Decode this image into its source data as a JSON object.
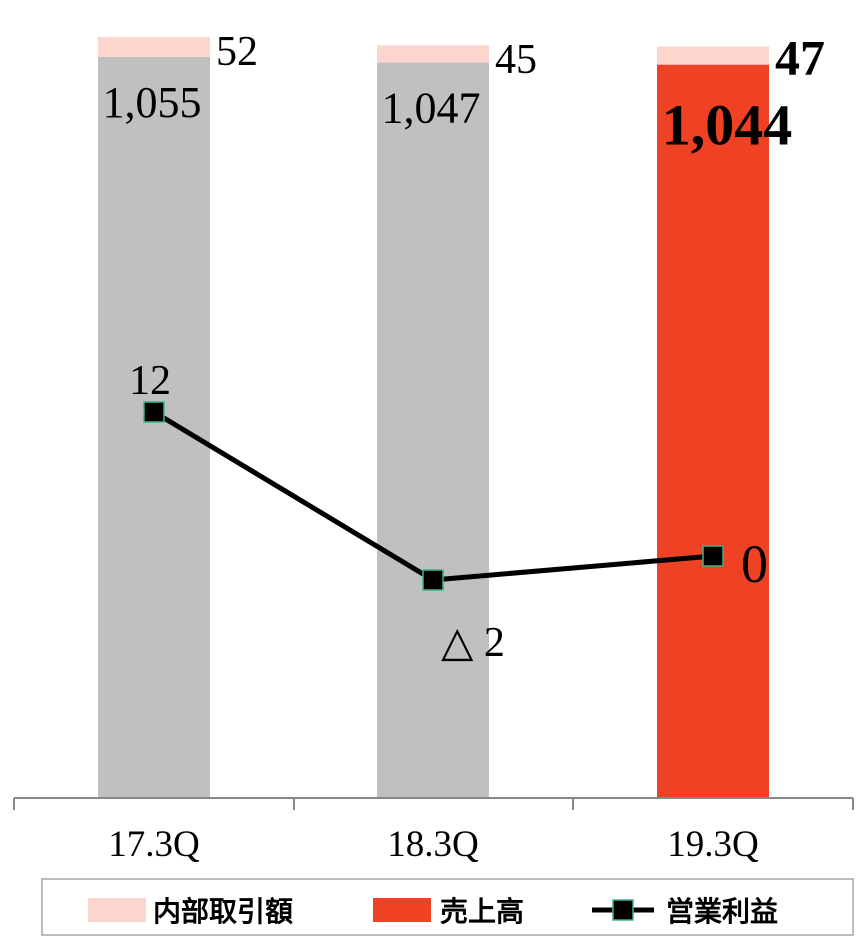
{
  "chart_data": {
    "type": "bar",
    "categories": [
      "17.3Q",
      "18.3Q",
      "19.3Q"
    ],
    "series": [
      {
        "name": "売上高",
        "kind": "bar",
        "values": [
          1055,
          1047,
          1044
        ],
        "labels": [
          "1,055",
          "1,047",
          "1,044"
        ],
        "colors": [
          "#c0c0c0",
          "#c0c0c0",
          "#ef4224"
        ]
      },
      {
        "name": "内部取引額",
        "kind": "bar-stacked",
        "values": [
          52,
          45,
          47
        ],
        "labels": [
          "52",
          "45",
          "47"
        ],
        "color": "#fdd5cf"
      },
      {
        "name": "営業利益",
        "kind": "line",
        "values": [
          12,
          -2,
          0
        ],
        "labels": [
          "12",
          "△ 2",
          "0"
        ],
        "color": "#000000",
        "marker_fill": "#000000",
        "marker_edge": "#3cb38a"
      }
    ],
    "highlight_index": 2,
    "title": "",
    "xlabel": "",
    "ylabel": "",
    "grid": false,
    "legend": "bottom",
    "legend_items": [
      {
        "name": "内部取引額",
        "color": "#fdd5cf",
        "type": "box"
      },
      {
        "name": "売上高",
        "color": "#ef4224",
        "type": "box"
      },
      {
        "name": "営業利益",
        "color": "#000000",
        "type": "line-marker"
      }
    ]
  }
}
